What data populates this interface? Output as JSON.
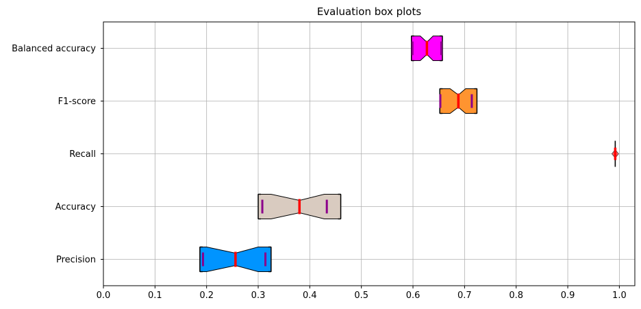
{
  "chart_data": {
    "type": "boxplot",
    "orientation": "horizontal",
    "title": "Evaluation box plots",
    "xlabel": "",
    "ylabel": "",
    "xlim": [
      0.0,
      1.03
    ],
    "x_ticks": [
      "0.0",
      "0.1",
      "0.2",
      "0.3",
      "0.4",
      "0.5",
      "0.6",
      "0.7",
      "0.8",
      "0.9",
      "1.0"
    ],
    "grid": true,
    "notched": true,
    "colors": {
      "median": "#ff0000",
      "mean_marker": "#8b008b",
      "grid": "#b0b0b0",
      "outline": "#000000"
    },
    "categories": [
      "Balanced accuracy",
      "F1-score",
      "Recall",
      "Accuracy",
      "Precision"
    ],
    "boxes": [
      {
        "label": "Balanced accuracy",
        "whislo": 0.597,
        "q1": 0.597,
        "med": 0.627,
        "q3": 0.657,
        "whishi": 0.657,
        "cilo": 0.614,
        "cihi": 0.639,
        "markers": [
          0.599,
          0.655
        ],
        "fill": "#ff00ff"
      },
      {
        "label": "F1-score",
        "whislo": 0.652,
        "q1": 0.652,
        "med": 0.688,
        "q3": 0.724,
        "whishi": 0.724,
        "cilo": 0.672,
        "cihi": 0.702,
        "markers": [
          0.653,
          0.714
        ],
        "fill": "#ff9430"
      },
      {
        "label": "Recall",
        "whislo": 0.992,
        "q1": 0.992,
        "med": 0.992,
        "q3": 0.992,
        "whishi": 0.992,
        "cilo": 0.992,
        "cihi": 0.992,
        "markers": [],
        "outliers": [
          0.992
        ],
        "fill": "#ff6060"
      },
      {
        "label": "Accuracy",
        "whislo": 0.3,
        "q1": 0.3,
        "med": 0.38,
        "q3": 0.46,
        "whishi": 0.46,
        "cilo": 0.325,
        "cihi": 0.428,
        "markers": [
          0.308,
          0.433
        ],
        "fill": "#d9cbc0"
      },
      {
        "label": "Precision",
        "whislo": 0.187,
        "q1": 0.187,
        "med": 0.256,
        "q3": 0.325,
        "whishi": 0.325,
        "cilo": 0.2,
        "cihi": 0.3,
        "markers": [
          0.193,
          0.314
        ],
        "fill": "#0094ff"
      }
    ]
  }
}
